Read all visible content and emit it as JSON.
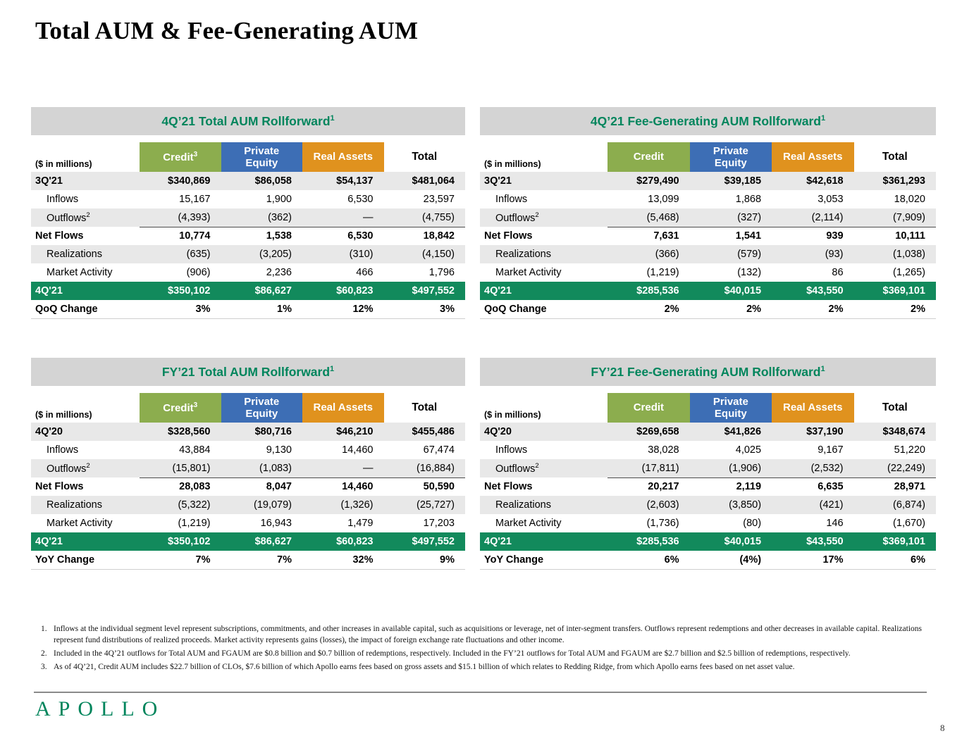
{
  "page": {
    "title": "Total AUM & Fee-Generating AUM",
    "logo": "APOLLO",
    "page_number": "8"
  },
  "colors": {
    "credit": "#8CAD4E",
    "private_equity": "#3D6EB5",
    "real_assets": "#E0921E",
    "total_header": "#FFFFFF",
    "highlight_green": "#128A5C",
    "title_green": "#00855C",
    "title_bar_gray": "#D4D4D4",
    "stripe_gray": "#E8E8E8"
  },
  "tables": [
    {
      "title": "4Q’21 Total AUM Rollforward",
      "title_sup": "1",
      "unit_label": "($ in millions)",
      "columns": [
        {
          "label": "Credit",
          "sup": "3",
          "key": "credit"
        },
        {
          "label": "Private Equity",
          "sup": "",
          "key": "private_equity"
        },
        {
          "label": "Real Assets",
          "sup": "",
          "key": "real_assets"
        },
        {
          "label": "Total",
          "sup": "",
          "key": "total"
        }
      ],
      "rows": [
        {
          "label": "3Q'21",
          "sup": "",
          "kind": "period-open",
          "values": [
            "$340,869",
            "$86,058",
            "$54,137",
            "$481,064"
          ]
        },
        {
          "label": "Inflows",
          "sup": "",
          "kind": "detail",
          "values": [
            "15,167",
            "1,900",
            "6,530",
            "23,597"
          ]
        },
        {
          "label": "Outflows",
          "sup": "2",
          "kind": "detail-sum",
          "values": [
            "(4,393)",
            "(362)",
            "—",
            "(4,755)"
          ]
        },
        {
          "label": "Net Flows",
          "sup": "",
          "kind": "subtotal",
          "values": [
            "10,774",
            "1,538",
            "6,530",
            "18,842"
          ]
        },
        {
          "label": "Realizations",
          "sup": "",
          "kind": "detail",
          "values": [
            "(635)",
            "(3,205)",
            "(310)",
            "(4,150)"
          ]
        },
        {
          "label": "Market Activity",
          "sup": "",
          "kind": "detail",
          "values": [
            "(906)",
            "2,236",
            "466",
            "1,796"
          ]
        },
        {
          "label": "4Q'21",
          "sup": "",
          "kind": "period-close",
          "values": [
            "$350,102",
            "$86,627",
            "$60,823",
            "$497,552"
          ]
        },
        {
          "label": "QoQ Change",
          "sup": "",
          "kind": "change",
          "values": [
            "3%",
            "1%",
            "12%",
            "3%"
          ]
        }
      ]
    },
    {
      "title": "4Q’21 Fee-Generating AUM Rollforward",
      "title_sup": "1",
      "unit_label": "($ in millions)",
      "columns": [
        {
          "label": "Credit",
          "sup": "",
          "key": "credit"
        },
        {
          "label": "Private Equity",
          "sup": "",
          "key": "private_equity"
        },
        {
          "label": "Real Assets",
          "sup": "",
          "key": "real_assets"
        },
        {
          "label": "Total",
          "sup": "",
          "key": "total"
        }
      ],
      "rows": [
        {
          "label": "3Q'21",
          "sup": "",
          "kind": "period-open",
          "values": [
            "$279,490",
            "$39,185",
            "$42,618",
            "$361,293"
          ]
        },
        {
          "label": "Inflows",
          "sup": "",
          "kind": "detail",
          "values": [
            "13,099",
            "1,868",
            "3,053",
            "18,020"
          ]
        },
        {
          "label": "Outflows",
          "sup": "2",
          "kind": "detail-sum",
          "values": [
            "(5,468)",
            "(327)",
            "(2,114)",
            "(7,909)"
          ]
        },
        {
          "label": "Net Flows",
          "sup": "",
          "kind": "subtotal",
          "values": [
            "7,631",
            "1,541",
            "939",
            "10,111"
          ]
        },
        {
          "label": "Realizations",
          "sup": "",
          "kind": "detail",
          "values": [
            "(366)",
            "(579)",
            "(93)",
            "(1,038)"
          ]
        },
        {
          "label": "Market Activity",
          "sup": "",
          "kind": "detail",
          "values": [
            "(1,219)",
            "(132)",
            "86",
            "(1,265)"
          ]
        },
        {
          "label": "4Q'21",
          "sup": "",
          "kind": "period-close",
          "values": [
            "$285,536",
            "$40,015",
            "$43,550",
            "$369,101"
          ]
        },
        {
          "label": "QoQ Change",
          "sup": "",
          "kind": "change",
          "values": [
            "2%",
            "2%",
            "2%",
            "2%"
          ]
        }
      ]
    },
    {
      "title": "FY’21 Total AUM Rollforward",
      "title_sup": "1",
      "unit_label": "($ in millions)",
      "columns": [
        {
          "label": "Credit",
          "sup": "3",
          "key": "credit"
        },
        {
          "label": "Private Equity",
          "sup": "",
          "key": "private_equity"
        },
        {
          "label": "Real Assets",
          "sup": "",
          "key": "real_assets"
        },
        {
          "label": "Total",
          "sup": "",
          "key": "total"
        }
      ],
      "rows": [
        {
          "label": "4Q'20",
          "sup": "",
          "kind": "period-open",
          "values": [
            "$328,560",
            "$80,716",
            "$46,210",
            "$455,486"
          ]
        },
        {
          "label": "Inflows",
          "sup": "",
          "kind": "detail",
          "values": [
            "43,884",
            "9,130",
            "14,460",
            "67,474"
          ]
        },
        {
          "label": "Outflows",
          "sup": "2",
          "kind": "detail-sum",
          "values": [
            "(15,801)",
            "(1,083)",
            "—",
            "(16,884)"
          ]
        },
        {
          "label": "Net Flows",
          "sup": "",
          "kind": "subtotal",
          "values": [
            "28,083",
            "8,047",
            "14,460",
            "50,590"
          ]
        },
        {
          "label": "Realizations",
          "sup": "",
          "kind": "detail",
          "values": [
            "(5,322)",
            "(19,079)",
            "(1,326)",
            "(25,727)"
          ]
        },
        {
          "label": "Market Activity",
          "sup": "",
          "kind": "detail",
          "values": [
            "(1,219)",
            "16,943",
            "1,479",
            "17,203"
          ]
        },
        {
          "label": "4Q'21",
          "sup": "",
          "kind": "period-close",
          "values": [
            "$350,102",
            "$86,627",
            "$60,823",
            "$497,552"
          ]
        },
        {
          "label": "YoY Change",
          "sup": "",
          "kind": "change",
          "values": [
            "7%",
            "7%",
            "32%",
            "9%"
          ]
        }
      ]
    },
    {
      "title": "FY’21 Fee-Generating AUM Rollforward",
      "title_sup": "1",
      "unit_label": "($ in millions)",
      "columns": [
        {
          "label": "Credit",
          "sup": "",
          "key": "credit"
        },
        {
          "label": "Private Equity",
          "sup": "",
          "key": "private_equity"
        },
        {
          "label": "Real Assets",
          "sup": "",
          "key": "real_assets"
        },
        {
          "label": "Total",
          "sup": "",
          "key": "total"
        }
      ],
      "rows": [
        {
          "label": "4Q'20",
          "sup": "",
          "kind": "period-open",
          "values": [
            "$269,658",
            "$41,826",
            "$37,190",
            "$348,674"
          ]
        },
        {
          "label": "Inflows",
          "sup": "",
          "kind": "detail",
          "values": [
            "38,028",
            "4,025",
            "9,167",
            "51,220"
          ]
        },
        {
          "label": "Outflows",
          "sup": "2",
          "kind": "detail-sum",
          "values": [
            "(17,811)",
            "(1,906)",
            "(2,532)",
            "(22,249)"
          ]
        },
        {
          "label": "Net Flows",
          "sup": "",
          "kind": "subtotal",
          "values": [
            "20,217",
            "2,119",
            "6,635",
            "28,971"
          ]
        },
        {
          "label": "Realizations",
          "sup": "",
          "kind": "detail",
          "values": [
            "(2,603)",
            "(3,850)",
            "(421)",
            "(6,874)"
          ]
        },
        {
          "label": "Market Activity",
          "sup": "",
          "kind": "detail",
          "values": [
            "(1,736)",
            "(80)",
            "146",
            "(1,670)"
          ]
        },
        {
          "label": "4Q'21",
          "sup": "",
          "kind": "period-close",
          "values": [
            "$285,536",
            "$40,015",
            "$43,550",
            "$369,101"
          ]
        },
        {
          "label": "YoY Change",
          "sup": "",
          "kind": "change",
          "values": [
            "6%",
            "(4%)",
            "17%",
            "6%"
          ]
        }
      ]
    }
  ],
  "footnotes": [
    {
      "num": "1.",
      "text": "Inflows at the individual segment level represent subscriptions, commitments, and other increases in available capital, such as acquisitions or leverage, net of inter-segment transfers. Outflows represent redemptions and other decreases in available capital. Realizations represent fund distributions of realized proceeds. Market activity represents gains (losses), the impact of foreign exchange rate fluctuations and other income."
    },
    {
      "num": "2.",
      "text": "Included in the 4Q’21 outflows for Total AUM and FGAUM are $0.8 billion and $0.7 billion of redemptions, respectively. Included in the FY’21 outflows for Total AUM and FGAUM are $2.7 billion and $2.5 billion of redemptions, respectively."
    },
    {
      "num": "3.",
      "text": "As of 4Q’21, Credit AUM includes $22.7 billion of CLOs, $7.6 billion of which Apollo earns fees based on gross assets and $15.1 billion of which relates to Redding Ridge, from which Apollo earns fees based on net asset value."
    }
  ]
}
